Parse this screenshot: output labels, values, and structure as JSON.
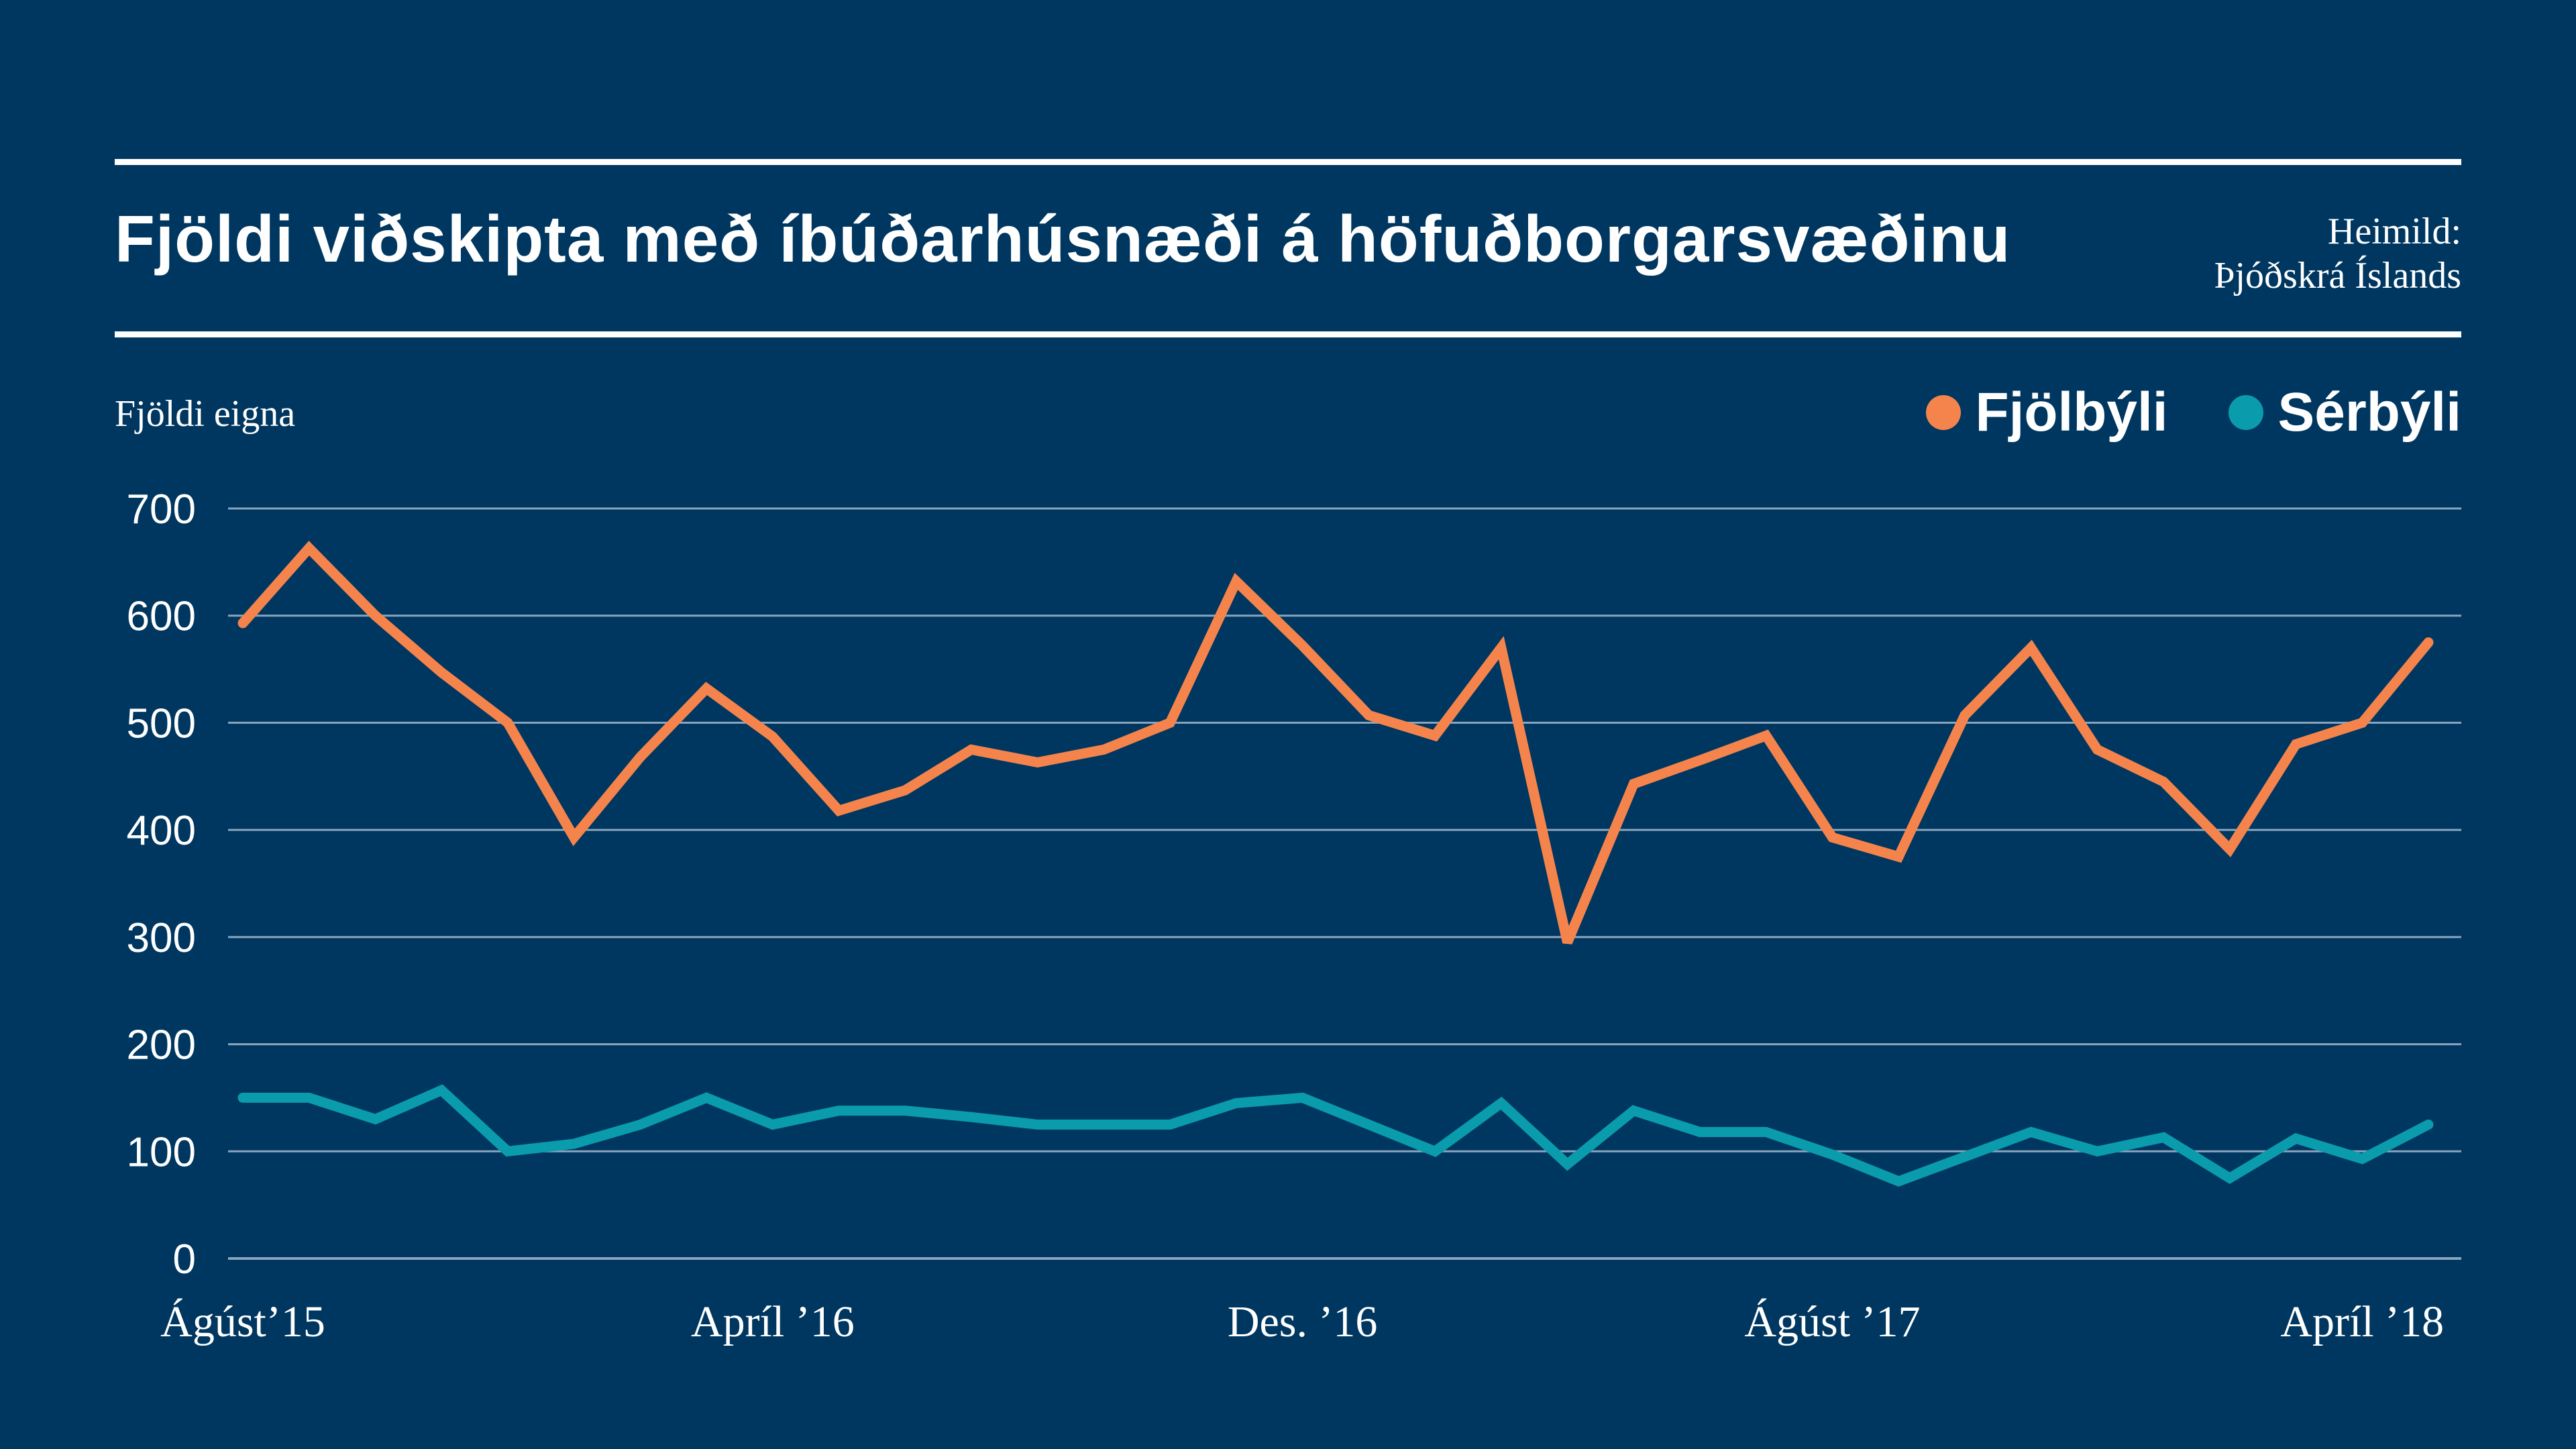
{
  "header": {
    "title": "Fjöldi viðskipta með íbúðarhúsnæði á höfuðborgarsvæðinu",
    "source_line1": "Heimild:",
    "source_line2": "Þjóðskrá Íslands"
  },
  "colors": {
    "background": "#003760",
    "fjolbyli": "#f5844c",
    "serbyli": "#0a9bac",
    "grid": "#8aa4bb"
  },
  "chart_data": {
    "type": "line",
    "ylabel": "Fjöldi eigna",
    "ylim": [
      0,
      700
    ],
    "yticks": [
      0,
      100,
      200,
      300,
      400,
      500,
      600,
      700
    ],
    "grid": true,
    "legend_position": "top-right",
    "x_tick_labels": [
      {
        "label": "Ágúst’15",
        "index": 0
      },
      {
        "label": "Apríl ’16",
        "index": 8
      },
      {
        "label": "Des. ’16",
        "index": 16
      },
      {
        "label": "Ágúst ’17",
        "index": 24
      },
      {
        "label": "Apríl ’18",
        "index": 32
      }
    ],
    "series": [
      {
        "name": "Fjölbýli",
        "color": "#f5844c",
        "values": [
          593,
          663,
          600,
          547,
          500,
          393,
          468,
          532,
          487,
          418,
          437,
          475,
          463,
          475,
          500,
          632,
          572,
          507,
          488,
          570,
          295,
          443,
          465,
          488,
          393,
          375,
          507,
          570,
          475,
          445,
          382,
          480,
          500,
          575
        ]
      },
      {
        "name": "Sérbýli",
        "color": "#0a9bac",
        "values": [
          150,
          150,
          130,
          157,
          100,
          107,
          125,
          150,
          125,
          138,
          138,
          132,
          125,
          125,
          125,
          145,
          150,
          125,
          100,
          145,
          88,
          138,
          118,
          118,
          97,
          72,
          95,
          118,
          100,
          113,
          75,
          112,
          93,
          125
        ]
      }
    ]
  }
}
